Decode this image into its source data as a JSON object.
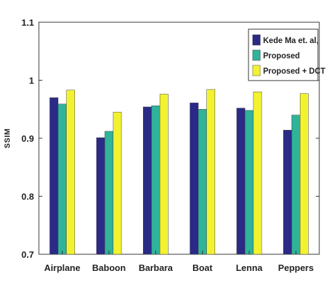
{
  "chart_data": {
    "type": "bar",
    "title": "",
    "xlabel": "",
    "ylabel": "SSIM",
    "ylim": [
      0.7,
      1.1
    ],
    "yticks": [
      0.7,
      0.8,
      0.9,
      1,
      1.1
    ],
    "ytick_labels": [
      "0.7",
      "0.8",
      "0.9",
      "1",
      "1.1"
    ],
    "grid": false,
    "legend_position": "top-right",
    "categories": [
      "Airplane",
      "Baboon",
      "Barbara",
      "Boat",
      "Lenna",
      "Peppers"
    ],
    "series": [
      {
        "name": "Kede Ma et. al,",
        "color": "#2b2a86",
        "values": [
          0.97,
          0.901,
          0.954,
          0.961,
          0.952,
          0.914
        ]
      },
      {
        "name": "Proposed",
        "color": "#2fb39a",
        "values": [
          0.959,
          0.912,
          0.956,
          0.95,
          0.948,
          0.94
        ]
      },
      {
        "name": "Proposed + DCT",
        "color": "#f2f230",
        "values": [
          0.983,
          0.945,
          0.976,
          0.984,
          0.98,
          0.977
        ]
      }
    ]
  }
}
